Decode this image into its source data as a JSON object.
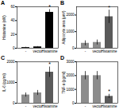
{
  "chart_data": [
    {
      "type": "bar",
      "title": "A",
      "y_label": "Histamine (nM)",
      "categories": [
        "-",
        "vector",
        "Histamine"
      ],
      "values": [
        1,
        2,
        52
      ],
      "errors": [
        0.5,
        0.5,
        4
      ],
      "colors": [
        "#000000",
        "#000000",
        "#000000"
      ],
      "ylim": [
        0,
        60
      ],
      "yticks": [
        0,
        20,
        40,
        60
      ],
      "annotations": [
        {
          "category": "Histamine",
          "text": "*"
        }
      ]
    },
    {
      "type": "bar",
      "title": "B",
      "y_label": "Adipocyte area (μm²)",
      "categories": [
        "-",
        "vector",
        "Histamine"
      ],
      "values": [
        300,
        350,
        1900
      ],
      "errors": [
        150,
        150,
        400
      ],
      "colors": [
        "#8c8c8c",
        "#8c8c8c",
        "#5a5a5a"
      ],
      "ylim": [
        0,
        2500
      ],
      "yticks": [
        0,
        1000,
        2000
      ],
      "annotations": [
        {
          "category": "Histamine",
          "text": "*"
        }
      ]
    },
    {
      "type": "bar",
      "title": "C",
      "y_label": "IL-6 (pg/ml)",
      "categories": [
        "-",
        "vector",
        "Histamine"
      ],
      "values": [
        400,
        500,
        1500
      ],
      "errors": [
        100,
        120,
        250
      ],
      "colors": [
        "#8c8c8c",
        "#8c8c8c",
        "#5a5a5a"
      ],
      "ylim": [
        0,
        2000
      ],
      "yticks": [
        0,
        1000,
        2000
      ],
      "annotations": [
        {
          "category": "Histamine",
          "text": "*"
        }
      ]
    },
    {
      "type": "bar",
      "title": "D",
      "y_label": "TNF-α (pg/ml)",
      "categories": [
        "-",
        "vector",
        "Histamine"
      ],
      "values": [
        2000,
        2000,
        500
      ],
      "errors": [
        300,
        300,
        150
      ],
      "colors": [
        "#8c8c8c",
        "#8c8c8c",
        "#5a5a5a"
      ],
      "ylim": [
        0,
        3000
      ],
      "yticks": [
        0,
        1000,
        2000,
        3000
      ],
      "annotations": [
        {
          "category": "Histamine",
          "text": "*"
        }
      ]
    }
  ]
}
